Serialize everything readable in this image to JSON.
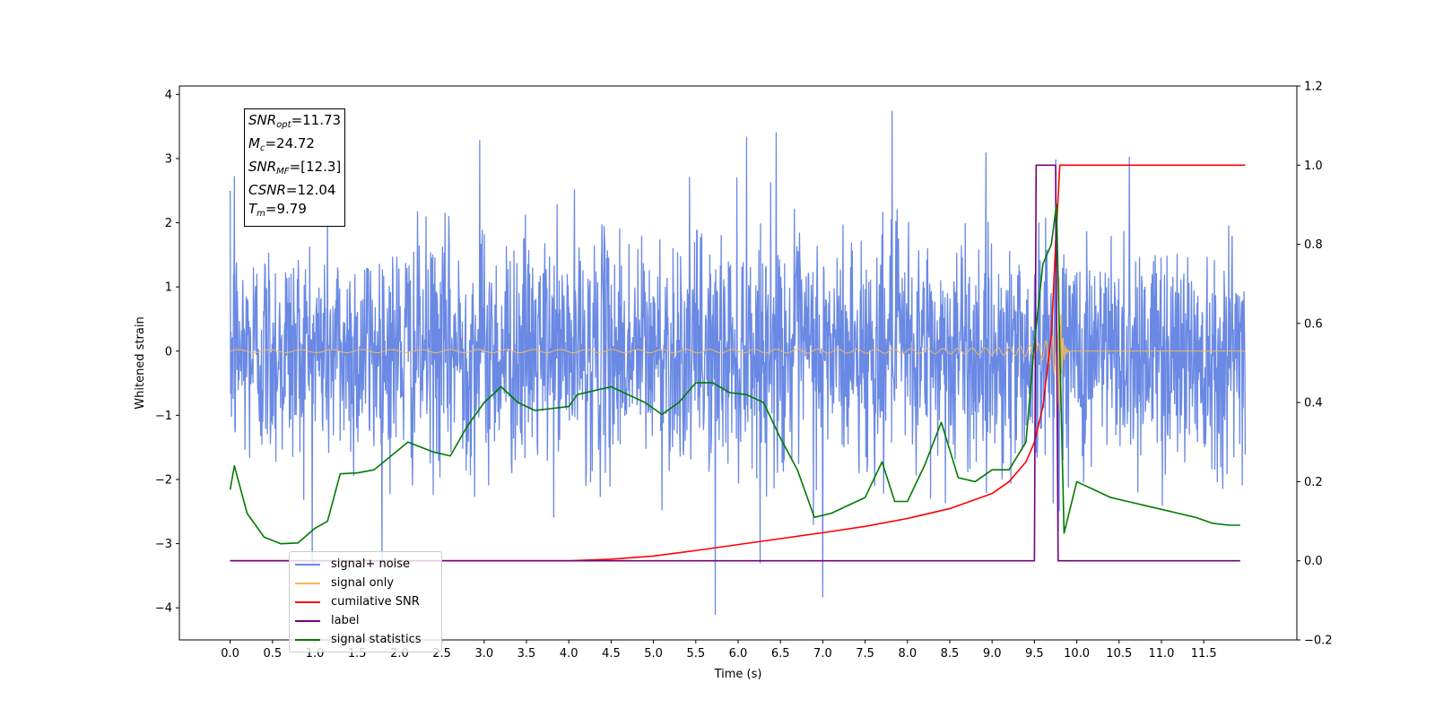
{
  "chart_data": {
    "type": "line",
    "xlabel": "Time (s)",
    "ylabel_left": "Whitened strain",
    "ylabel_right": "",
    "xlim": [
      -0.6,
      12.6
    ],
    "ylim_left": [
      -4.5,
      4.13
    ],
    "ylim_right": [
      -0.2,
      1.2
    ],
    "x_ticks": [
      "0.0",
      "0.5",
      "1.0",
      "1.5",
      "2.0",
      "2.5",
      "3.0",
      "3.5",
      "4.0",
      "4.5",
      "5.0",
      "5.5",
      "6.0",
      "6.5",
      "7.0",
      "7.5",
      "8.0",
      "8.5",
      "9.0",
      "9.5",
      "10.0",
      "10.5",
      "11.0",
      "11.5"
    ],
    "y_ticks_left": [
      "−4",
      "−3",
      "−2",
      "−1",
      "0",
      "1",
      "2",
      "3",
      "4"
    ],
    "y_ticks_right": [
      "−0.2",
      "0.0",
      "0.2",
      "0.4",
      "0.6",
      "0.8",
      "1.0",
      "1.2"
    ],
    "grid": false,
    "legend_placement": "lower-left",
    "series": [
      {
        "name": "signal+ noise",
        "axis": "left",
        "color": "#6a89e4",
        "style": "dense-noise",
        "x_range": [
          0.0,
          11.99
        ],
        "sigma": 0.9,
        "notable_peaks": [
          [
            0.05,
            2.72
          ],
          [
            5.73,
            -4.1
          ],
          [
            7.0,
            -3.83
          ],
          [
            7.82,
            3.74
          ],
          [
            6.45,
            3.4
          ],
          [
            6.1,
            3.33
          ],
          [
            2.95,
            3.28
          ],
          [
            9.75,
            2.98
          ],
          [
            10.62,
            3.02
          ]
        ]
      },
      {
        "name": "signal only",
        "axis": "left",
        "color": "#f5b85a",
        "style": "chirp",
        "x_range": [
          0.0,
          11.99
        ],
        "merger_time": 9.79,
        "peak_amplitude": 1.5
      },
      {
        "name": "cumilative SNR",
        "axis": "right",
        "color": "#ff0000",
        "x": [
          0.0,
          4.0,
          4.5,
          5.0,
          5.5,
          6.0,
          6.5,
          7.0,
          7.5,
          8.0,
          8.5,
          9.0,
          9.2,
          9.4,
          9.5,
          9.6,
          9.7,
          9.75,
          9.8,
          11.99
        ],
        "y": [
          0.0,
          0.0,
          0.004,
          0.012,
          0.026,
          0.041,
          0.056,
          0.071,
          0.087,
          0.107,
          0.132,
          0.17,
          0.2,
          0.25,
          0.3,
          0.39,
          0.57,
          0.8,
          1.0,
          1.0
        ]
      },
      {
        "name": "label",
        "axis": "right",
        "color": "#74007c",
        "x": [
          0.0,
          9.5,
          9.52,
          9.75,
          9.78,
          11.93
        ],
        "y": [
          0.0,
          0.0,
          1.0,
          1.0,
          0.0,
          0.0
        ]
      },
      {
        "name": "signal statistics",
        "axis": "right",
        "color": "#007a00",
        "x": [
          0.0,
          0.05,
          0.2,
          0.4,
          0.6,
          0.8,
          1.0,
          1.15,
          1.3,
          1.5,
          1.7,
          1.9,
          2.1,
          2.4,
          2.6,
          2.8,
          3.0,
          3.2,
          3.4,
          3.6,
          3.8,
          4.0,
          4.1,
          4.3,
          4.5,
          4.7,
          4.9,
          5.1,
          5.3,
          5.5,
          5.7,
          5.9,
          6.1,
          6.3,
          6.5,
          6.7,
          6.9,
          7.1,
          7.3,
          7.5,
          7.7,
          7.85,
          8.0,
          8.2,
          8.4,
          8.6,
          8.8,
          9.0,
          9.2,
          9.4,
          9.5,
          9.6,
          9.7,
          9.76,
          9.85,
          10.0,
          10.2,
          10.4,
          10.6,
          10.8,
          11.0,
          11.2,
          11.4,
          11.6,
          11.8,
          11.93
        ],
        "y": [
          0.18,
          0.24,
          0.12,
          0.06,
          0.043,
          0.045,
          0.082,
          0.1,
          0.22,
          0.222,
          0.23,
          0.265,
          0.3,
          0.275,
          0.265,
          0.34,
          0.4,
          0.44,
          0.4,
          0.38,
          0.385,
          0.39,
          0.42,
          0.43,
          0.44,
          0.42,
          0.4,
          0.37,
          0.4,
          0.45,
          0.45,
          0.425,
          0.42,
          0.4,
          0.31,
          0.23,
          0.11,
          0.12,
          0.14,
          0.16,
          0.25,
          0.15,
          0.15,
          0.24,
          0.35,
          0.21,
          0.2,
          0.23,
          0.23,
          0.3,
          0.55,
          0.75,
          0.8,
          0.9,
          0.07,
          0.2,
          0.18,
          0.16,
          0.15,
          0.14,
          0.13,
          0.12,
          0.11,
          0.095,
          0.09,
          0.09
        ]
      }
    ]
  },
  "info_box": {
    "lines": [
      {
        "sym": "SNR",
        "sub": "opt",
        "val": "=11.73"
      },
      {
        "sym": "M",
        "sub": "c",
        "val": "=24.72"
      },
      {
        "sym": "SNR",
        "sub": "MF",
        "val": "=[12.3]"
      },
      {
        "sym": "CSNR",
        "sub": "",
        "val": "=12.04"
      },
      {
        "sym": "T",
        "sub": "m",
        "val": "=9.79"
      }
    ]
  },
  "legend": {
    "items": [
      {
        "label": "signal+ noise",
        "color": "#6a89e4"
      },
      {
        "label": "signal only",
        "color": "#f5b85a"
      },
      {
        "label": "cumilative SNR",
        "color": "#ff0000"
      },
      {
        "label": "label",
        "color": "#74007c"
      },
      {
        "label": "signal statistics",
        "color": "#007a00"
      }
    ]
  }
}
